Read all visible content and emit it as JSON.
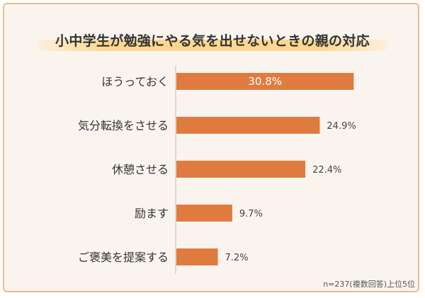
{
  "chart_data": {
    "type": "bar",
    "orientation": "horizontal",
    "title": "小中学生が勉強にやる気を出せないときの親の対応",
    "categories": [
      "ほうっておく",
      "気分転換をさせる",
      "休憩させる",
      "励ます",
      "ご褒美を提案する"
    ],
    "values": [
      30.8,
      24.9,
      22.4,
      9.7,
      7.2
    ],
    "value_labels": [
      "30.8%",
      "24.9%",
      "22.4%",
      "9.7%",
      "7.2%"
    ],
    "unit": "%",
    "xlim": [
      0,
      31
    ],
    "grid": false,
    "colors": {
      "bar": "#e07b3f",
      "axis": "#bbbbbb",
      "label_inside": "#ffffff",
      "label_outside": "#444444"
    }
  },
  "footnote": "n=237(複数回答)上位5位"
}
